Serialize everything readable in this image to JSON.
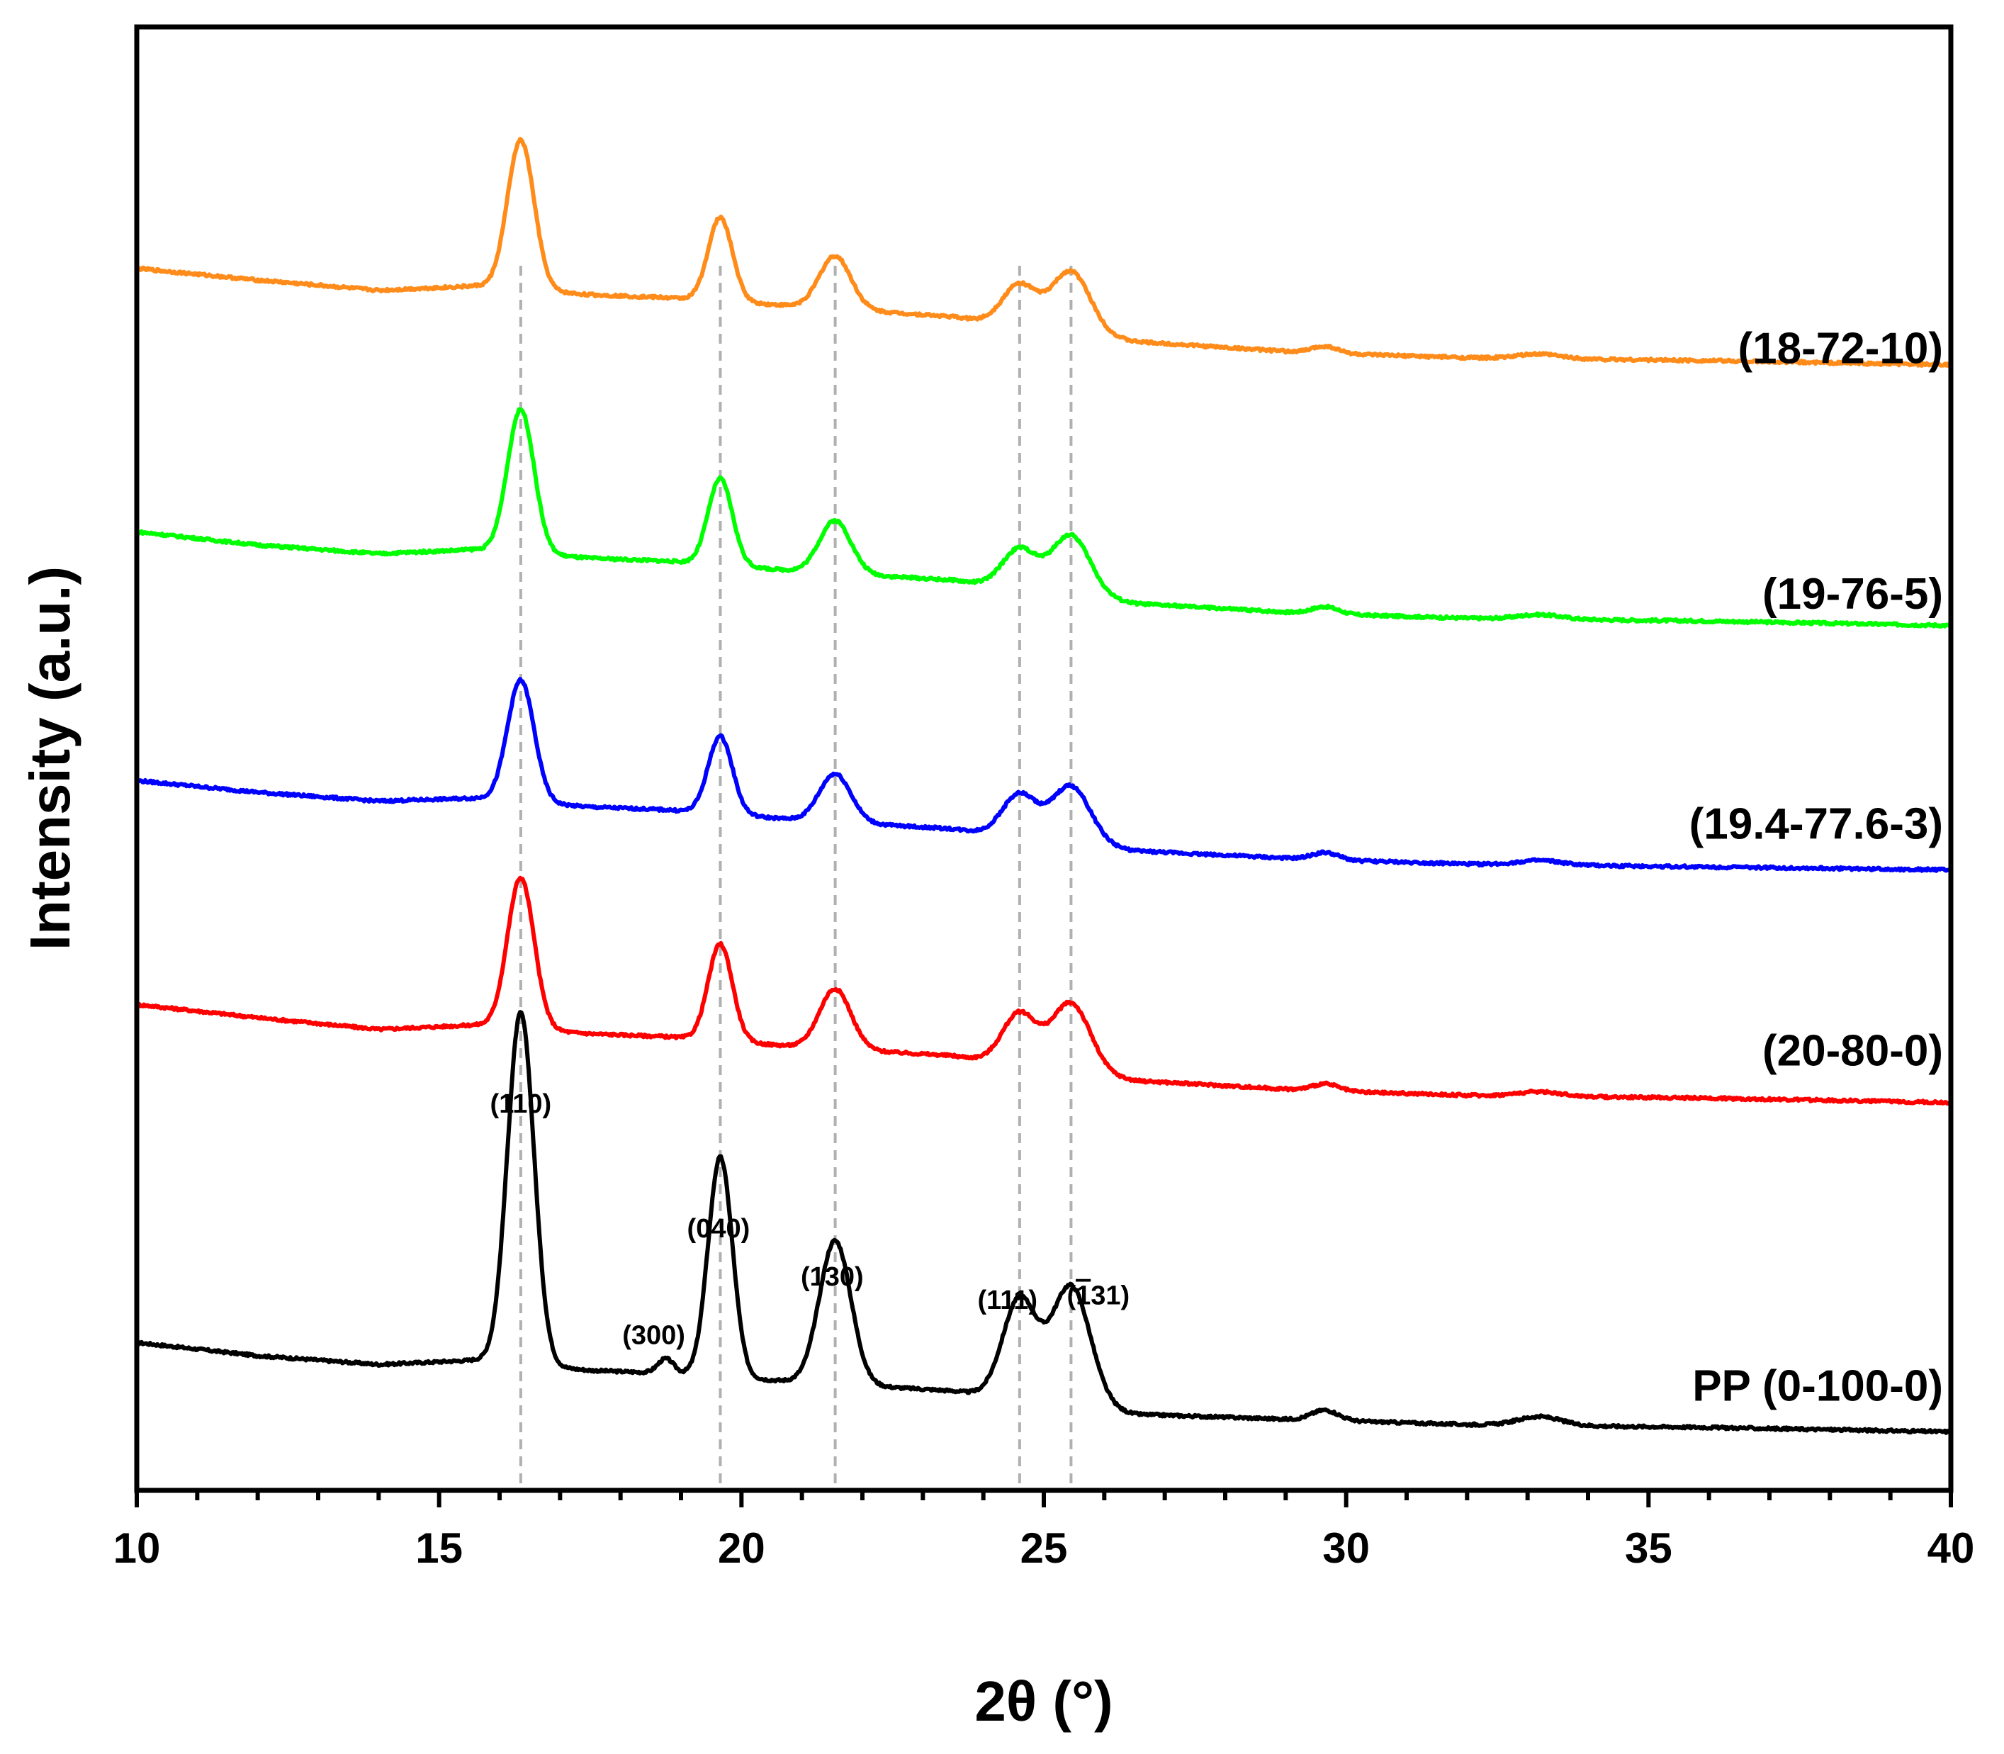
{
  "chart_data": {
    "type": "line",
    "title": "",
    "xlabel": "2θ (°)",
    "ylabel": "Intensity (a.u.)",
    "xlim": [
      10,
      40
    ],
    "ylim": [
      0,
      10
    ],
    "x_ticks": [
      10,
      15,
      20,
      25,
      30,
      35,
      40
    ],
    "x_tick_labels": [
      "10",
      "15",
      "20",
      "25",
      "30",
      "35",
      "40"
    ],
    "x_minor_step": 1,
    "y_ticks_visible": false,
    "grid": false,
    "reference_lines_x": [
      16.35,
      19.65,
      21.55,
      24.6,
      25.45
    ],
    "peaks": [
      {
        "center": 16.35,
        "width": 0.22
      },
      {
        "center": 19.65,
        "width": 0.2
      },
      {
        "center": 21.55,
        "width": 0.26
      },
      {
        "center": 24.6,
        "width": 0.28
      },
      {
        "center": 25.45,
        "width": 0.32
      },
      {
        "center": 29.65,
        "width": 0.22
      },
      {
        "center": 33.2,
        "width": 0.35
      }
    ],
    "peak_annotations": [
      {
        "text": "(110)",
        "x": 16.35,
        "y": 2.58,
        "color": "#000000"
      },
      {
        "text": "(040)",
        "x": 19.62,
        "y": 1.73,
        "color": "#000000"
      },
      {
        "text": "(130)",
        "x": 21.5,
        "y": 1.4,
        "color": "#000000"
      },
      {
        "text": "(111)",
        "x": 24.4,
        "y": 1.24,
        "color": "#000000"
      },
      {
        "text": "(131)",
        "x": 25.9,
        "y": 1.27,
        "color": "#000000",
        "overline_digit": "1"
      },
      {
        "text": "(300)",
        "x": 18.55,
        "y": 1.0,
        "color": "#0000ff"
      }
    ],
    "series": [
      {
        "name": "PP (0-100-0)",
        "color": "#000000",
        "label_y": 0.71,
        "baseline": {
          "x": [
            10,
            12,
            14,
            15.6,
            17.5,
            18.8,
            21,
            23.5,
            26.5,
            29.5,
            32,
            36,
            40
          ],
          "y": [
            1.01,
            0.92,
            0.86,
            0.89,
            0.82,
            0.8,
            0.74,
            0.68,
            0.52,
            0.48,
            0.45,
            0.43,
            0.4
          ]
        },
        "heights": [
          2.4,
          1.5,
          0.98,
          0.68,
          0.82,
          0.07,
          0.06
        ],
        "extra_peaks": [
          {
            "center": 18.75,
            "width": 0.13,
            "height": 0.1
          }
        ]
      },
      {
        "name": "(20-80-0)",
        "color": "#ff0000",
        "label_y": 3.0,
        "baseline": {
          "x": [
            10,
            12,
            14,
            15.6,
            17.5,
            18.8,
            21,
            23.5,
            26.5,
            29.5,
            32,
            36,
            40
          ],
          "y": [
            3.32,
            3.23,
            3.15,
            3.18,
            3.12,
            3.1,
            3.03,
            2.97,
            2.8,
            2.73,
            2.7,
            2.68,
            2.65
          ]
        },
        "heights": [
          1.03,
          0.66,
          0.41,
          0.35,
          0.47,
          0.05,
          0.03
        ]
      },
      {
        "name": "(19.4-77.6-3)",
        "color": "#0000ff",
        "label_y": 4.55,
        "baseline": {
          "x": [
            10,
            12,
            14,
            15.6,
            17.5,
            18.8,
            21,
            23.5,
            26.5,
            29.5,
            32,
            36,
            40
          ],
          "y": [
            4.85,
            4.77,
            4.71,
            4.73,
            4.67,
            4.65,
            4.58,
            4.52,
            4.37,
            4.31,
            4.28,
            4.26,
            4.24
          ]
        },
        "heights": [
          0.83,
          0.53,
          0.33,
          0.29,
          0.39,
          0.05,
          0.03
        ]
      },
      {
        "name": "(19-76-5)",
        "color": "#00ff00",
        "label_y": 6.12,
        "baseline": {
          "x": [
            10,
            12,
            14,
            15.6,
            17.5,
            18.8,
            21,
            23.5,
            26.5,
            29.5,
            32,
            36,
            40
          ],
          "y": [
            6.55,
            6.46,
            6.4,
            6.43,
            6.37,
            6.35,
            6.28,
            6.22,
            6.06,
            5.99,
            5.96,
            5.94,
            5.91
          ]
        },
        "heights": [
          0.98,
          0.59,
          0.36,
          0.27,
          0.41,
          0.05,
          0.03
        ]
      },
      {
        "name": "(18-72-10)",
        "color": "#ff8c1a",
        "label_y": 7.8,
        "baseline": {
          "x": [
            10,
            12,
            14,
            15.6,
            17.5,
            18.8,
            21,
            23.5,
            26.5,
            29.5,
            32,
            36,
            40
          ],
          "y": [
            8.35,
            8.27,
            8.2,
            8.23,
            8.17,
            8.15,
            8.09,
            8.02,
            7.85,
            7.77,
            7.74,
            7.72,
            7.69
          ]
        },
        "heights": [
          1.02,
          0.57,
          0.36,
          0.28,
          0.42,
          0.05,
          0.03
        ]
      }
    ]
  }
}
